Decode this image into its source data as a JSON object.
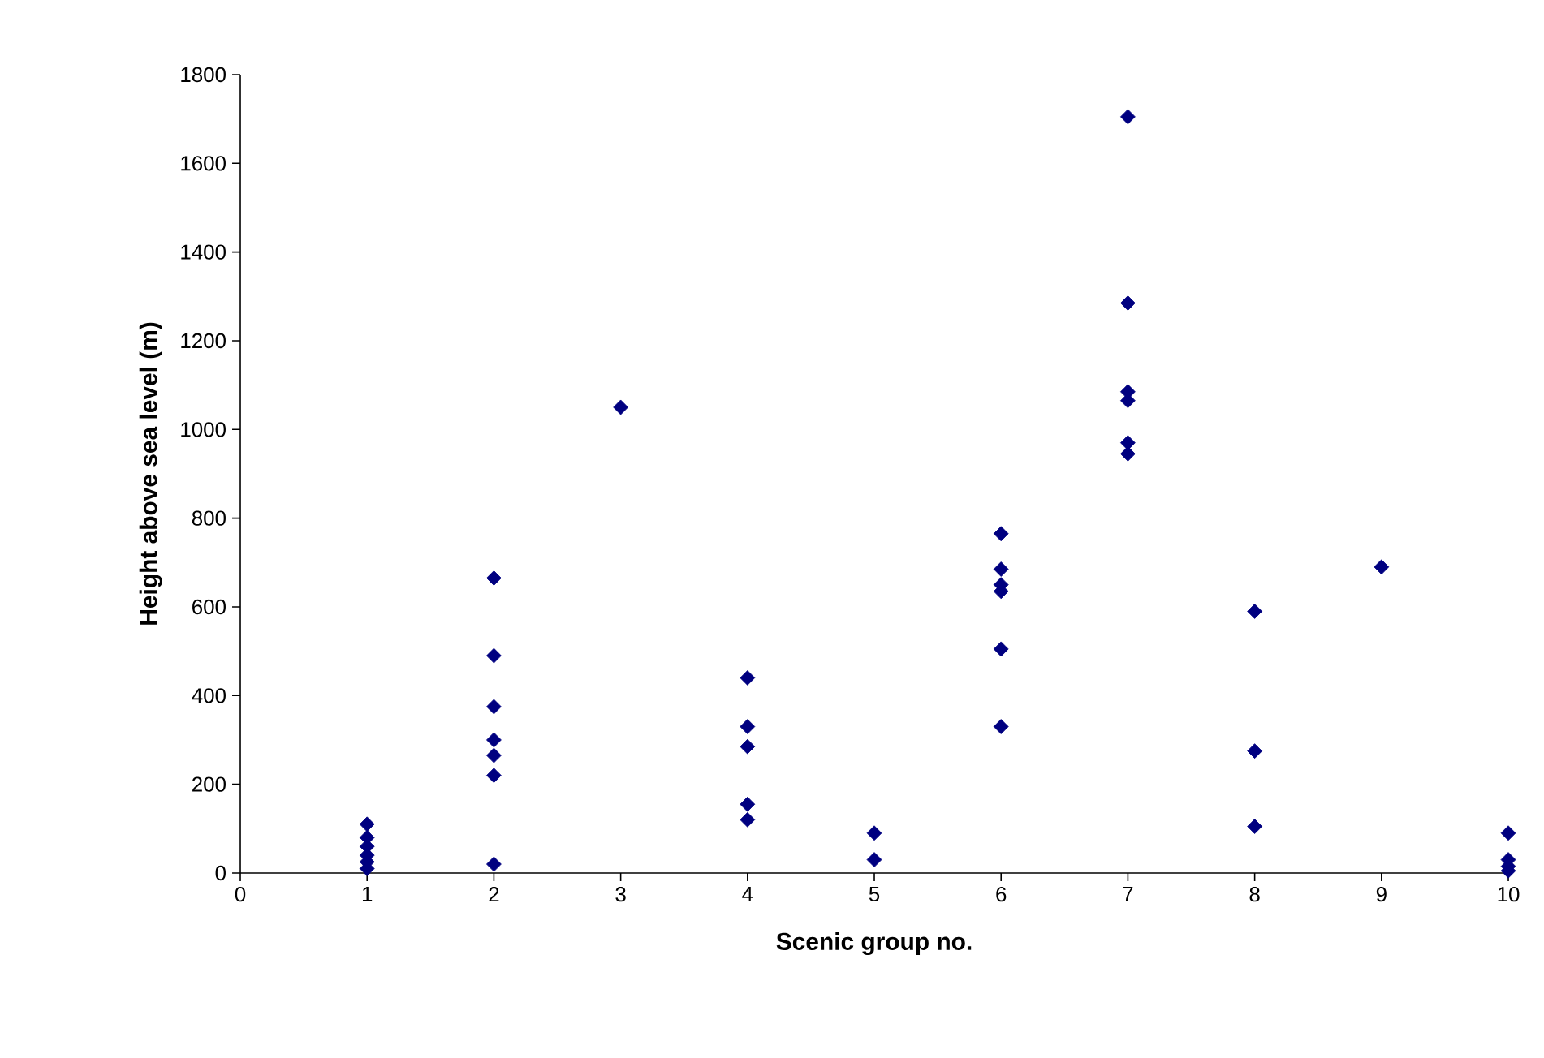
{
  "chart_data": {
    "type": "scatter",
    "xlabel": "Scenic group no.",
    "ylabel": "Height above sea level (m)",
    "series": [
      {
        "color": "#000080",
        "x": [
          1,
          1,
          1,
          1,
          1,
          1,
          2,
          2,
          2,
          2,
          2,
          2,
          2,
          3,
          4,
          4,
          4,
          4,
          4,
          5,
          5,
          6,
          6,
          6,
          6,
          6,
          6,
          7,
          7,
          7,
          7,
          7,
          7,
          8,
          8,
          8,
          9,
          10,
          10,
          10,
          10
        ],
        "values": [
          110,
          80,
          60,
          40,
          25,
          10,
          665,
          490,
          375,
          300,
          265,
          220,
          20,
          1050,
          440,
          330,
          285,
          155,
          120,
          90,
          30,
          765,
          685,
          650,
          635,
          505,
          330,
          1705,
          1285,
          1085,
          1065,
          970,
          945,
          590,
          275,
          105,
          690,
          90,
          30,
          15,
          5
        ]
      }
    ],
    "xlim": [
      0,
      10
    ],
    "xticks": [
      0,
      1,
      2,
      3,
      4,
      5,
      6,
      7,
      8,
      9,
      10
    ],
    "ylim": [
      0,
      1800
    ],
    "yticks": [
      0,
      200,
      400,
      600,
      800,
      1000,
      1200,
      1400,
      1600,
      1800
    ],
    "marker": "diamond"
  }
}
